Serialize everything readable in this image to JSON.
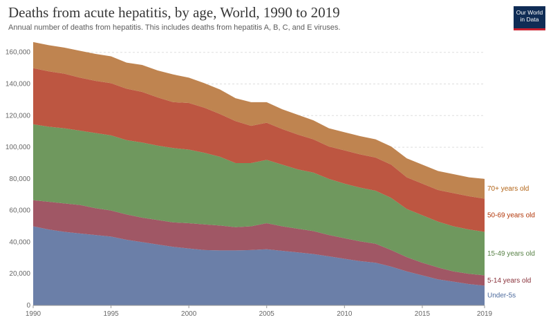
{
  "header": {
    "title": "Deaths from acute hepatitis, by age, World, 1990 to 2019",
    "subtitle": "Annual number of deaths from hepatitis. This includes deaths from hepatitis A, B, C, and E viruses.",
    "logo_line1": "Our World",
    "logo_line2": "in Data"
  },
  "colors": {
    "under5": "#6b7fa8",
    "age5_14": "#a05765",
    "age15_49": "#6f985e",
    "age50_69": "#bd5641",
    "age70plus": "#bf8450",
    "label_under5": "#4c6a9c",
    "label_5_14": "#883039",
    "label_15_49": "#578145",
    "label_50_69": "#b13507",
    "label_70plus": "#b16214",
    "grid": "#dddddd",
    "axis": "#999999"
  },
  "chart_data": {
    "type": "area",
    "stacked": true,
    "x": [
      1990,
      1991,
      1992,
      1993,
      1994,
      1995,
      1996,
      1997,
      1998,
      1999,
      2000,
      2001,
      2002,
      2003,
      2004,
      2005,
      2006,
      2007,
      2008,
      2009,
      2010,
      2011,
      2012,
      2013,
      2014,
      2015,
      2016,
      2017,
      2018,
      2019
    ],
    "series": [
      {
        "name": "Under-5s",
        "color_key": "under5",
        "label_color_key": "label_under5",
        "values": [
          50000,
          48000,
          46500,
          45500,
          44500,
          43500,
          41500,
          40000,
          38500,
          37000,
          36000,
          35000,
          34800,
          34800,
          35000,
          35500,
          34500,
          33500,
          32500,
          31000,
          29500,
          28000,
          27000,
          24500,
          21500,
          19000,
          16500,
          15000,
          13500,
          12500
        ]
      },
      {
        "name": "5-14 years old",
        "color_key": "age5_14",
        "label_color_key": "label_5_14",
        "values": [
          16500,
          17500,
          18000,
          18000,
          17000,
          16500,
          16000,
          15500,
          15500,
          15500,
          16000,
          16200,
          15700,
          14700,
          15000,
          16500,
          15500,
          15000,
          14500,
          13500,
          13000,
          12500,
          12000,
          10500,
          9000,
          8000,
          7500,
          6500,
          6500,
          6500
        ]
      },
      {
        "name": "15-49 years old",
        "color_key": "age15_49",
        "label_color_key": "label_15_49",
        "values": [
          48000,
          47500,
          47500,
          47000,
          47500,
          47500,
          47000,
          47500,
          47000,
          47000,
          46500,
          45300,
          43500,
          40500,
          40000,
          40000,
          39000,
          37500,
          37000,
          35500,
          34500,
          34000,
          33500,
          33000,
          30500,
          30000,
          29000,
          28500,
          28000,
          27500
        ]
      },
      {
        "name": "50-69 years old",
        "color_key": "age50_69",
        "label_color_key": "label_50_69",
        "values": [
          35500,
          35000,
          34500,
          33500,
          33000,
          33000,
          32500,
          32000,
          30500,
          29000,
          29500,
          28500,
          27000,
          26500,
          23500,
          23500,
          22500,
          22000,
          21000,
          20500,
          21000,
          21000,
          21000,
          21000,
          20000,
          20000,
          20000,
          21000,
          21000,
          21000
        ]
      },
      {
        "name": "70+ years old",
        "color_key": "age70plus",
        "label_color_key": "label_70plus",
        "values": [
          16500,
          16500,
          16500,
          17000,
          17000,
          17000,
          16500,
          17000,
          17000,
          17500,
          16000,
          15500,
          15500,
          14500,
          15000,
          13000,
          12500,
          12500,
          12000,
          11500,
          11500,
          11500,
          11500,
          11500,
          12000,
          12000,
          12000,
          12000,
          12000,
          12500
        ]
      }
    ],
    "ylim": [
      0,
      166000
    ],
    "yticks": [
      0,
      20000,
      40000,
      60000,
      80000,
      100000,
      120000,
      140000,
      160000
    ],
    "ytick_labels": [
      "0",
      "20,000",
      "40,000",
      "60,000",
      "80,000",
      "100,000",
      "120,000",
      "140,000",
      "160,000"
    ],
    "xticks": [
      1990,
      1995,
      2000,
      2005,
      2010,
      2015,
      2019
    ],
    "xtick_labels": [
      "1990",
      "1995",
      "2000",
      "2005",
      "2010",
      "2015",
      "2019"
    ],
    "grid": "horizontal dashed",
    "legend": "right, labels at series ends",
    "xlabel": "",
    "ylabel": ""
  }
}
